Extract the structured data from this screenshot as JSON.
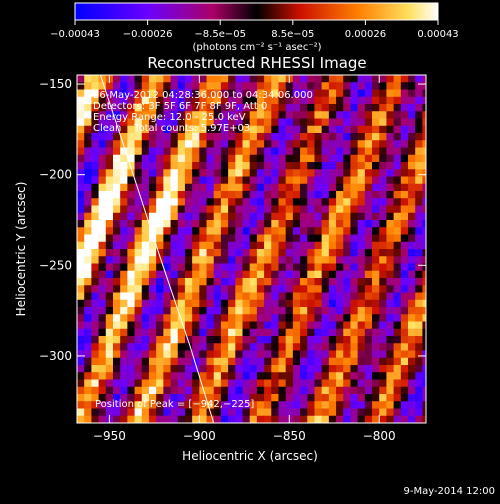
{
  "chart_data": {
    "type": "heatmap",
    "title": "Reconstructed RHESSI Image",
    "xlabel": "Heliocentric X (arcsec)",
    "ylabel": "Heliocentric Y (arcsec)",
    "xlim": [
      -968,
      -774
    ],
    "ylim": [
      -337,
      -145
    ],
    "x_ticks": [
      -950,
      -900,
      -850,
      -800
    ],
    "x_tick_labels": [
      "−950",
      "−900",
      "−850",
      "−800"
    ],
    "y_ticks": [
      -150,
      -200,
      -250,
      -300
    ],
    "y_tick_labels": [
      "−150",
      "−200",
      "−250",
      "−300"
    ],
    "colorbar": {
      "range": [
        -0.00043,
        0.00043
      ],
      "tick_labels": [
        "−0.00043",
        "−0.00026",
        "−8.5e−05",
        "8.5e−05",
        "0.00026",
        "0.00043"
      ],
      "unit_label": "(photons cm⁻² s⁻¹ asec⁻²)",
      "colors": [
        "#0000ff",
        "#7a00ff",
        "#cc0066",
        "#000000",
        "#ff4000",
        "#ffd040",
        "#ffffff"
      ]
    },
    "annotations": [
      "26-May-2012 04:28:36.000 to 04:34:06.000",
      "Detectors: 3F 5F 6F 7F 8F 9F, Att 0",
      "Energy Range: 12.0 - 25.0 keV",
      "Clean    Total counts: 5.97E+03"
    ],
    "peak_label": "Position of Peak = [−942,−225]",
    "peak": [
      -942,
      -225
    ],
    "limb_curve": [
      [
        -955,
        -145
      ],
      [
        -940,
        -190
      ],
      [
        -922,
        -245
      ],
      [
        -905,
        -295
      ],
      [
        -892,
        -337
      ]
    ],
    "grid": false
  },
  "footer_date": "9-May-2014 12:00"
}
